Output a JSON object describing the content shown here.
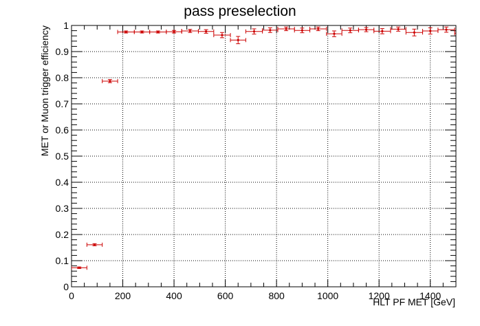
{
  "chart_data": {
    "type": "scatter",
    "title": "pass preselection",
    "xlabel": "HLT PF MET [GeV]",
    "ylabel": "MET or Muon trigger efficiency",
    "xlim": [
      0,
      1500
    ],
    "ylim": [
      0,
      1
    ],
    "grid": true,
    "x_ticks": [
      "0",
      "200",
      "400",
      "600",
      "800",
      "1000",
      "1200",
      "1400"
    ],
    "y_ticks": [
      "0",
      "0.1",
      "0.2",
      "0.3",
      "0.4",
      "0.5",
      "0.6",
      "0.7",
      "0.8",
      "0.9",
      "1"
    ],
    "series": [
      {
        "color": "#cc0000",
        "points": [
          {
            "x": 30,
            "xerr": 30,
            "y": 0.073,
            "yerr": 0.003
          },
          {
            "x": 90,
            "xerr": 30,
            "y": 0.161,
            "yerr": 0.004
          },
          {
            "x": 150,
            "xerr": 30,
            "y": 0.787,
            "yerr": 0.006
          },
          {
            "x": 212.5,
            "xerr": 32.5,
            "y": 0.975,
            "yerr": 0.004
          },
          {
            "x": 275,
            "xerr": 30,
            "y": 0.975,
            "yerr": 0.004
          },
          {
            "x": 337.5,
            "xerr": 32.5,
            "y": 0.975,
            "yerr": 0.004
          },
          {
            "x": 400,
            "xerr": 30,
            "y": 0.976,
            "yerr": 0.005
          },
          {
            "x": 462.5,
            "xerr": 32.5,
            "y": 0.979,
            "yerr": 0.006
          },
          {
            "x": 525,
            "xerr": 30,
            "y": 0.977,
            "yerr": 0.007
          },
          {
            "x": 587.5,
            "xerr": 32.5,
            "y": 0.963,
            "yerr": 0.01
          },
          {
            "x": 650,
            "xerr": 30,
            "y": 0.944,
            "yerr": 0.014
          },
          {
            "x": 712.5,
            "xerr": 32.5,
            "y": 0.977,
            "yerr": 0.01
          },
          {
            "x": 775,
            "xerr": 30,
            "y": 0.982,
            "yerr": 0.009
          },
          {
            "x": 837.5,
            "xerr": 32.5,
            "y": 0.987,
            "yerr": 0.007
          },
          {
            "x": 900,
            "xerr": 30,
            "y": 0.981,
            "yerr": 0.009
          },
          {
            "x": 962.5,
            "xerr": 32.5,
            "y": 0.987,
            "yerr": 0.007
          },
          {
            "x": 1025,
            "xerr": 30,
            "y": 0.968,
            "yerr": 0.011
          },
          {
            "x": 1087.5,
            "xerr": 32.5,
            "y": 0.981,
            "yerr": 0.009
          },
          {
            "x": 1150,
            "xerr": 30,
            "y": 0.984,
            "yerr": 0.008
          },
          {
            "x": 1212.5,
            "xerr": 32.5,
            "y": 0.978,
            "yerr": 0.01
          },
          {
            "x": 1275,
            "xerr": 30,
            "y": 0.986,
            "yerr": 0.008
          },
          {
            "x": 1337.5,
            "xerr": 32.5,
            "y": 0.973,
            "yerr": 0.013
          },
          {
            "x": 1400,
            "xerr": 30,
            "y": 0.979,
            "yerr": 0.012
          },
          {
            "x": 1462.5,
            "xerr": 32.5,
            "y": 0.984,
            "yerr": 0.01
          },
          {
            "x": 1525,
            "xerr": 30,
            "y": 0.97,
            "yerr": 0.018
          }
        ]
      }
    ]
  }
}
